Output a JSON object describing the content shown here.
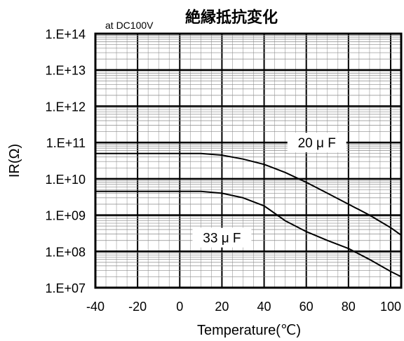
{
  "chart_data": {
    "type": "line",
    "title": "絶縁抵抗変化",
    "note": "at DC100V",
    "xlabel": "Temperature(℃)",
    "ylabel": "IR(Ω)",
    "xlim": [
      -40,
      105
    ],
    "ylim_log10": [
      7,
      14
    ],
    "y_scale": "log",
    "grid": true,
    "x_ticks": [
      "-40",
      "-20",
      "0",
      "20",
      "40",
      "60",
      "80",
      "100"
    ],
    "x_tick_values": [
      -40,
      -20,
      0,
      20,
      40,
      60,
      80,
      100
    ],
    "y_ticks": [
      "1.E+07",
      "1.E+08",
      "1.E+09",
      "1.E+10",
      "1.E+11",
      "1.E+12",
      "1.E+13",
      "1.E+14"
    ],
    "series": [
      {
        "name": "20μF",
        "label": "20 μ F",
        "x": [
          -40,
          -20,
          0,
          10,
          20,
          30,
          40,
          50,
          60,
          70,
          80,
          90,
          100,
          105
        ],
        "y": [
          50000000000.0,
          50000000000.0,
          50000000000.0,
          50000000000.0,
          45000000000.0,
          35000000000.0,
          25000000000.0,
          15000000000.0,
          8000000000.0,
          4000000000.0,
          2000000000.0,
          1000000000.0,
          450000000.0,
          280000000.0
        ]
      },
      {
        "name": "33μF",
        "label": "33 μ F",
        "x": [
          -40,
          -20,
          0,
          10,
          20,
          30,
          40,
          50,
          60,
          70,
          80,
          90,
          100,
          105
        ],
        "y": [
          4500000000.0,
          4500000000.0,
          4500000000.0,
          4500000000.0,
          4000000000.0,
          3000000000.0,
          1800000000.0,
          700000000.0,
          350000000.0,
          200000000.0,
          120000000.0,
          60000000.0,
          28000000.0,
          20000000.0
        ]
      }
    ]
  }
}
